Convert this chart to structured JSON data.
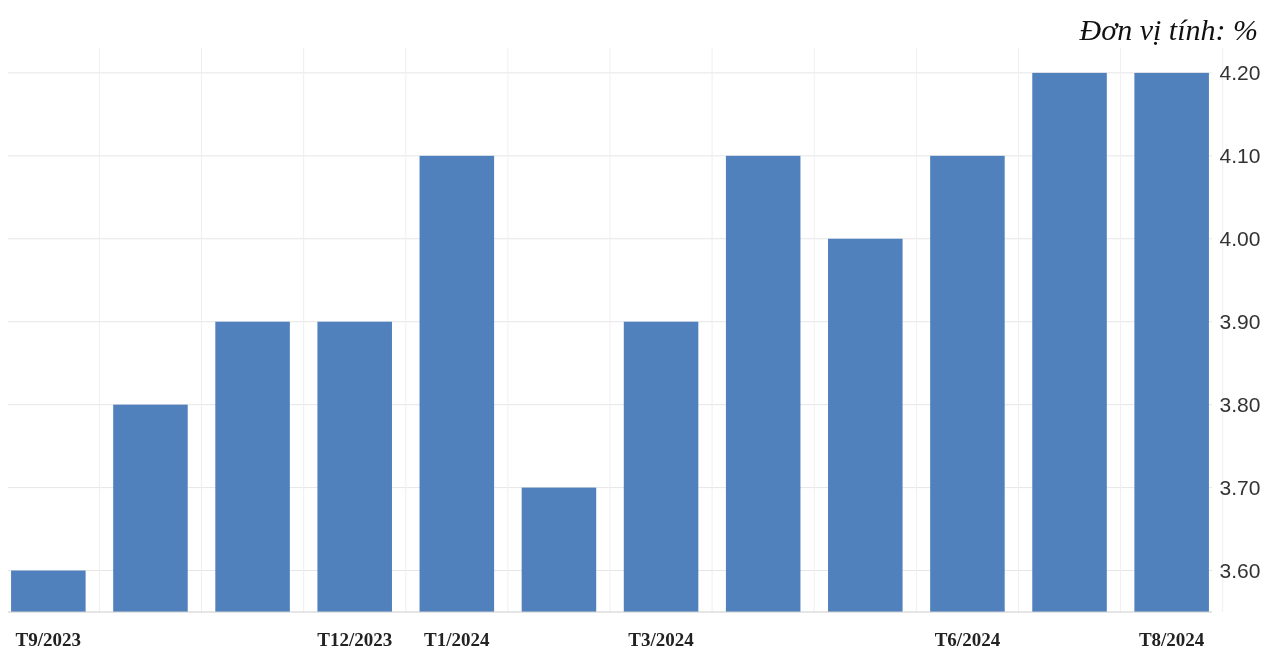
{
  "chart_data": {
    "type": "bar",
    "categories": [
      "T9/2023",
      null,
      null,
      "T12/2023",
      "T1/2024",
      null,
      "T3/2024",
      null,
      null,
      "T6/2024",
      null,
      "T8/2024"
    ],
    "values": [
      3.6,
      3.8,
      3.9,
      3.9,
      4.1,
      3.7,
      3.9,
      4.1,
      4.0,
      4.1,
      4.2,
      4.2
    ],
    "color": "#5181bd",
    "ylim": [
      3.55,
      4.23
    ],
    "yticks": [
      {
        "value": 3.6,
        "label": "3.60"
      },
      {
        "value": 3.7,
        "label": "3.70"
      },
      {
        "value": 3.8,
        "label": "3.80"
      },
      {
        "value": 3.9,
        "label": "3.90"
      },
      {
        "value": 4.0,
        "label": "4.00"
      },
      {
        "value": 4.1,
        "label": "4.10"
      },
      {
        "value": 4.2,
        "label": "4.20"
      }
    ],
    "grid": true,
    "annotations": [
      "Đơn vị tính: %"
    ]
  }
}
